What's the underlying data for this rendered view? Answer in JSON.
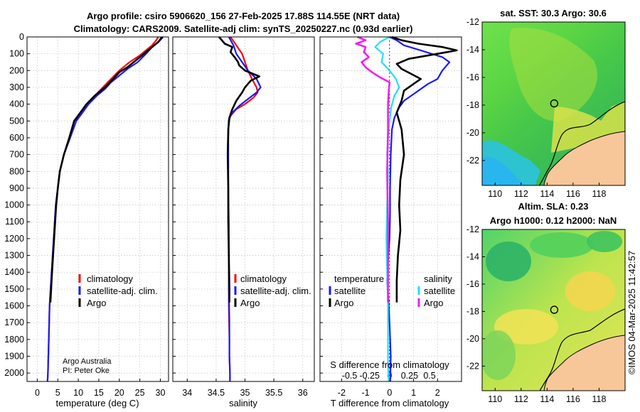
{
  "header": {
    "line1": "Argo profile: csiro 5906620_156 27-Feb-2025 17.88S 114.55E (NRT data)",
    "line2": "Climatology: CARS2009. Satellite-adj clim: synTS_20250227.nc (0.93d earlier)"
  },
  "credits": {
    "group": "Argo Australia",
    "pi": "PI: Peter Oke",
    "stamp": "©IMOS 04-Mar-2025 11:42:57"
  },
  "colors": {
    "climatology": "#ff0000",
    "satellite": "#1a1aff",
    "argo": "#000000",
    "sat_salinity": "#22e0f0",
    "argo_salinity": "#ee22ee",
    "land": "#f7c79a"
  },
  "chart_data": [
    {
      "type": "line",
      "name": "temperature-profile",
      "xlabel": "temperature (deg C)",
      "xlim": [
        -2.5,
        32
      ],
      "ylim": [
        2050,
        0
      ],
      "xticks": [
        "0",
        "5",
        "10",
        "15",
        "20",
        "25",
        "30"
      ],
      "yticks": [
        "0",
        "100",
        "200",
        "300",
        "400",
        "500",
        "600",
        "700",
        "800",
        "900",
        "1000",
        "1100",
        "1200",
        "1300",
        "1400",
        "1500",
        "1600",
        "1700",
        "1800",
        "1900",
        "2000"
      ],
      "legend": [
        "climatology",
        "satellite-adj. clim.",
        "Argo"
      ],
      "series": [
        {
          "name": "climatology",
          "color": "#ff0000",
          "x": [
            29.5,
            29,
            28,
            26.5,
            25,
            22.5,
            20,
            18,
            16,
            14,
            12.5,
            11,
            9.5,
            8,
            6.5,
            5.5,
            5,
            4.5,
            4,
            3.5,
            3,
            2.8,
            2.7,
            2.6,
            2.5
          ],
          "y": [
            0,
            20,
            50,
            80,
            110,
            150,
            200,
            250,
            300,
            350,
            400,
            450,
            500,
            600,
            700,
            800,
            900,
            1000,
            1200,
            1400,
            1600,
            1800,
            1900,
            2000,
            2050
          ]
        },
        {
          "name": "satellite",
          "color": "#1a1aff",
          "x": [
            30.3,
            29.5,
            28,
            26.5,
            24.5,
            22,
            20,
            18,
            16.5,
            14.5,
            12.5,
            11,
            9.5,
            8,
            6.5,
            5.5,
            5,
            4.5,
            4,
            3.5,
            3,
            2.8,
            2.7,
            2.6,
            2.5
          ],
          "y": [
            0,
            30,
            60,
            100,
            150,
            190,
            230,
            270,
            310,
            350,
            400,
            450,
            500,
            600,
            700,
            800,
            900,
            1000,
            1200,
            1400,
            1600,
            1800,
            1900,
            2000,
            2050
          ]
        },
        {
          "name": "argo",
          "color": "#000000",
          "x": [
            30.6,
            29.5,
            28,
            26,
            24,
            22,
            20,
            18.5,
            16.5,
            14,
            12,
            10.5,
            9,
            7.8,
            6.5,
            5.5,
            5,
            4.6,
            4.1,
            3.6,
            3.2
          ],
          "y": [
            0,
            30,
            60,
            100,
            140,
            180,
            210,
            250,
            300,
            350,
            400,
            450,
            500,
            600,
            700,
            800,
            900,
            1000,
            1200,
            1400,
            1580
          ]
        }
      ]
    },
    {
      "type": "line",
      "name": "salinity-profile",
      "xlabel": "salinity",
      "xlim": [
        33.75,
        36.2
      ],
      "ylim": [
        2050,
        0
      ],
      "xticks": [
        "34",
        "34.5",
        "35",
        "35.5",
        "36"
      ],
      "legend": [
        "climatology",
        "satellite-adj. clim.",
        "Argo"
      ],
      "series": [
        {
          "name": "climatology",
          "color": "#ff0000",
          "x": [
            34.75,
            34.85,
            34.95,
            35.0,
            35.05,
            35.12,
            35.2,
            35.22,
            35.15,
            35.0,
            34.85,
            34.75,
            34.72,
            34.71,
            34.71,
            34.71,
            34.72,
            34.72,
            34.72,
            34.73,
            34.73,
            34.74,
            34.74
          ],
          "y": [
            0,
            50,
            100,
            150,
            200,
            250,
            300,
            330,
            360,
            400,
            430,
            470,
            500,
            600,
            800,
            1000,
            1200,
            1400,
            1600,
            1800,
            1900,
            2000,
            2050
          ]
        },
        {
          "name": "satellite",
          "color": "#1a1aff",
          "x": [
            34.72,
            34.8,
            34.85,
            34.95,
            35.05,
            35.2,
            35.27,
            35.2,
            35.05,
            34.9,
            34.78,
            34.72,
            34.71,
            34.71,
            34.71,
            34.72,
            34.72,
            34.72,
            34.73,
            34.73,
            34.74,
            34.74
          ],
          "y": [
            0,
            50,
            100,
            150,
            200,
            250,
            300,
            330,
            370,
            410,
            450,
            490,
            550,
            700,
            900,
            1100,
            1300,
            1500,
            1700,
            1900,
            2000,
            2050
          ]
        },
        {
          "name": "argo",
          "color": "#000000",
          "x": [
            34.55,
            34.6,
            34.65,
            34.78,
            34.75,
            34.82,
            34.88,
            34.9,
            35.0,
            35.25,
            35.1,
            35.0,
            34.95,
            34.85,
            34.78,
            34.73,
            34.71,
            34.7,
            34.71,
            34.71,
            34.72,
            34.73,
            34.73
          ],
          "y": [
            0,
            20,
            40,
            60,
            90,
            120,
            150,
            170,
            200,
            235,
            260,
            300,
            330,
            380,
            430,
            480,
            550,
            700,
            900,
            1100,
            1300,
            1500,
            1580
          ]
        }
      ]
    },
    {
      "type": "line",
      "name": "difference-profile",
      "xlabel": "T difference from climatology",
      "x2label": "S difference from climatology",
      "xlim": [
        -2.9,
        3.0
      ],
      "x2lim": [
        -0.87,
        0.9
      ],
      "ylim": [
        2050,
        0
      ],
      "xticks": [
        "-2",
        "-1",
        "0",
        "1",
        "2"
      ],
      "x2ticks": [
        "-0.5",
        "-0.25",
        "0",
        "0.25",
        "0.5"
      ],
      "legend_headers": [
        "temperature",
        "salinity"
      ],
      "legend_left": [
        "satellite",
        "Argo"
      ],
      "legend_right": [
        "satellite",
        "Argo"
      ],
      "series": [
        {
          "name": "satellite-temperature",
          "color": "#1a1aff",
          "axis": "T",
          "x": [
            0,
            0.3,
            0.6,
            1.3,
            2.2,
            2.5,
            2.2,
            2.0,
            1.6,
            1.1,
            0.6,
            0.4,
            0.2,
            0.1,
            0.05,
            0.02,
            0.02,
            0.0,
            -0.05,
            -0.1,
            -0.05,
            0.0,
            0.05,
            0.03
          ],
          "y": [
            0,
            20,
            50,
            80,
            120,
            150,
            200,
            250,
            280,
            330,
            380,
            420,
            480,
            550,
            700,
            900,
            1050,
            1200,
            1300,
            1450,
            1550,
            1700,
            1900,
            2050
          ]
        },
        {
          "name": "argo-temperature",
          "color": "#000000",
          "axis": "T",
          "x": [
            0.1,
            0.5,
            1.2,
            2.2,
            2.8,
            2.0,
            0.8,
            0.3,
            0.5,
            0.9,
            1.3,
            1.0,
            0.6,
            0.5,
            0.3,
            0.5,
            0.6,
            0.45,
            0.4,
            0.45,
            0.35,
            0.3,
            0.3
          ],
          "y": [
            0,
            20,
            40,
            60,
            80,
            100,
            130,
            160,
            190,
            220,
            250,
            280,
            320,
            380,
            450,
            550,
            700,
            850,
            1000,
            1150,
            1300,
            1450,
            1580
          ]
        },
        {
          "name": "satellite-salinity",
          "color": "#22e0f0",
          "axis": "S",
          "x": [
            0,
            -0.12,
            -0.18,
            -0.08,
            -0.1,
            0.0,
            0.08,
            0.12,
            0.06,
            0.02,
            0.0,
            -0.02,
            -0.03,
            -0.02,
            -0.03,
            -0.04,
            -0.03,
            -0.02,
            -0.02,
            -0.02,
            -0.01
          ],
          "y": [
            0,
            30,
            60,
            100,
            150,
            200,
            250,
            300,
            350,
            420,
            500,
            600,
            700,
            800,
            1000,
            1200,
            1400,
            1600,
            1800,
            1950,
            2050
          ]
        },
        {
          "name": "argo-salinity",
          "color": "#ee22ee",
          "axis": "S",
          "x": [
            -0.4,
            -0.3,
            -0.42,
            -0.3,
            -0.32,
            -0.26,
            -0.35,
            -0.3,
            -0.22,
            -0.12,
            0.0,
            -0.01,
            -0.02,
            -0.02,
            -0.03,
            -0.02,
            -0.02,
            -0.02
          ],
          "y": [
            0,
            20,
            40,
            60,
            90,
            120,
            150,
            180,
            210,
            240,
            270,
            320,
            400,
            550,
            800,
            1100,
            1400,
            1580
          ]
        }
      ]
    },
    {
      "type": "heatmap",
      "name": "sst-map",
      "title": "sat. SST: 30.3 Argo: 30.6",
      "xticks": [
        "110",
        "112",
        "114",
        "116",
        "118"
      ],
      "yticks": [
        "-12",
        "-14",
        "-16",
        "-18",
        "-20",
        "-22"
      ],
      "xlim": [
        109,
        120
      ],
      "ylim": [
        -23.8,
        -12
      ],
      "marker": {
        "lon": 114.55,
        "lat": -17.88
      }
    },
    {
      "type": "heatmap",
      "name": "sla-map",
      "title_line1": "Altim. SLA: 0.23",
      "title_line2": "Argo h1000: 0.12 h2000: NaN",
      "xticks": [
        "110",
        "112",
        "114",
        "116",
        "118"
      ],
      "yticks": [
        "-12",
        "-14",
        "-16",
        "-18",
        "-20",
        "-22"
      ],
      "xlim": [
        109,
        120
      ],
      "ylim": [
        -23.8,
        -12
      ],
      "marker": {
        "lon": 114.55,
        "lat": -17.88
      }
    }
  ]
}
